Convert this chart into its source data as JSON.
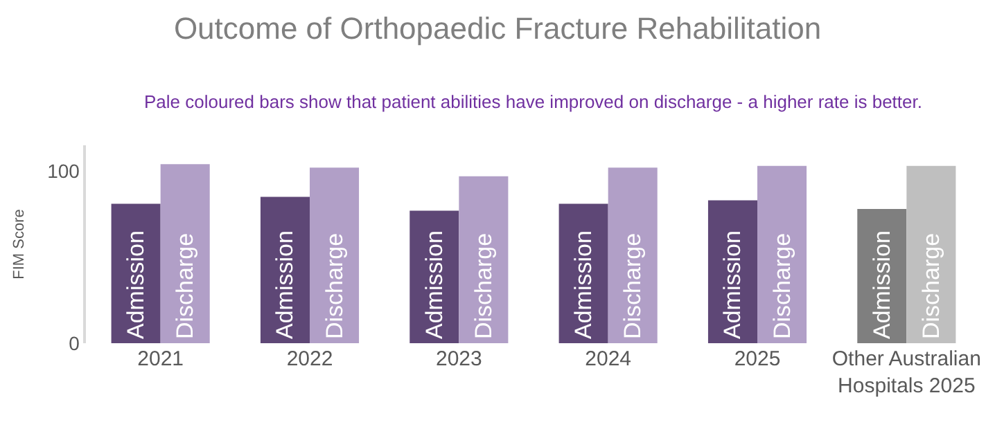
{
  "chart_data": {
    "type": "bar",
    "title": "Outcome of Orthopaedic Fracture Rehabilitation",
    "annotations": [
      "Pale coloured bars show that patient abilities have improved on discharge - a higher rate is better."
    ],
    "ylabel": "FIM Score",
    "categories": [
      "2021",
      "2022",
      "2023",
      "2024",
      "2025",
      "Other Australian Hospitals 2025"
    ],
    "series": [
      {
        "name": "Admission",
        "colors": [
          "#5e4776",
          "#5e4776",
          "#5e4776",
          "#5e4776",
          "#5e4776",
          "#7f7f7f"
        ],
        "values": [
          81,
          85,
          77,
          81,
          83,
          78
        ]
      },
      {
        "name": "Discharge",
        "colors": [
          "#b19fc7",
          "#b19fc7",
          "#b19fc7",
          "#b19fc7",
          "#b19fc7",
          "#bfbfbf"
        ],
        "values": [
          104,
          102,
          97,
          102,
          103,
          103
        ]
      }
    ],
    "ylim": [
      0,
      115
    ],
    "yticks": [
      0,
      100
    ],
    "legend": false
  }
}
